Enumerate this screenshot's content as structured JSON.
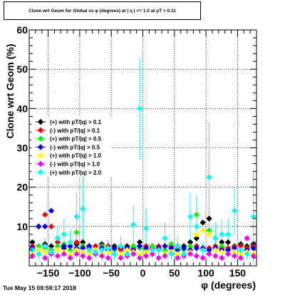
{
  "page": {
    "title": "Clone wrt Geom for Global vs φ (degrees) at | η | <= 1.0 at pT > 0.11",
    "timestamp": "Tue May 15 09:59:17 2018"
  },
  "chart_data": {
    "type": "scatter",
    "title": "Clone wrt Geom for Global vs φ (degrees) at | η | <= 1.0 at pT > 0.11",
    "xlabel": "φ (degrees)",
    "ylabel": "Clone wrt Geom (%)",
    "xlim": [
      -180,
      180
    ],
    "ylim": [
      0,
      60
    ],
    "xticks": [
      -150,
      -100,
      -50,
      0,
      50,
      100,
      150
    ],
    "xtick_labels": [
      "−150",
      "−100",
      "−50",
      "0",
      "50",
      "100",
      "150"
    ],
    "yticks": [
      10,
      20,
      30,
      40,
      50,
      60
    ],
    "grid": true,
    "legend_position": "left",
    "series": [
      {
        "name": "(+) with pT/|q| > 0.1",
        "color": "#000000",
        "x": [
          -175,
          -165,
          -155,
          -145,
          -135,
          -125,
          -115,
          -105,
          -95,
          -85,
          -75,
          -65,
          -55,
          -45,
          -35,
          -25,
          -15,
          -5,
          5,
          15,
          25,
          35,
          45,
          55,
          65,
          75,
          85,
          95,
          105,
          115,
          125,
          135,
          145,
          155,
          165,
          175
        ],
        "y": [
          6,
          5,
          5.5,
          5,
          6,
          4.5,
          5,
          5.5,
          6,
          5,
          5,
          5.5,
          5,
          5,
          4.5,
          5,
          5,
          6,
          5,
          5,
          4.5,
          5,
          5.5,
          5,
          5,
          6,
          7,
          11,
          12,
          7,
          6,
          6,
          5,
          5.5,
          5,
          5.5
        ]
      },
      {
        "name": "(-) with pT/|q| > 0.1",
        "color": "#ff0000",
        "x": [
          -175,
          -165,
          -155,
          -145,
          -135,
          -125,
          -115,
          -105,
          -95,
          -85,
          -75,
          -65,
          -55,
          -45,
          -35,
          -25,
          -15,
          -5,
          5,
          15,
          25,
          35,
          45,
          55,
          65,
          75,
          85,
          95,
          105,
          115,
          125,
          135,
          145,
          155,
          165,
          175
        ],
        "y": [
          5,
          10,
          13,
          10,
          6,
          5,
          5,
          6,
          5,
          4.5,
          5,
          5,
          5,
          4.5,
          4,
          4.5,
          4.5,
          5,
          5,
          4.5,
          5,
          5,
          5,
          4.5,
          4.5,
          5,
          5,
          4.5,
          4.5,
          5,
          4.5,
          4.5,
          5,
          5,
          4.5,
          5
        ]
      },
      {
        "name": "(+) with pT/|q| > 0.5",
        "color": "#00ff00",
        "x": [
          -175,
          -165,
          -155,
          -145,
          -135,
          -125,
          -115,
          -105,
          -95,
          -85,
          -75,
          -65,
          -55,
          -45,
          -35,
          -25,
          -15,
          -5,
          5,
          15,
          25,
          35,
          45,
          55,
          65,
          75,
          85,
          95,
          105,
          115,
          125,
          135,
          145,
          155,
          165,
          175
        ],
        "y": [
          4,
          5,
          4.5,
          4,
          5,
          5.5,
          4,
          8.5,
          5,
          4,
          4,
          5,
          4.5,
          4,
          5,
          4,
          5,
          4.5,
          4,
          5,
          4,
          4,
          5.5,
          4.5,
          4,
          5,
          13,
          9,
          9,
          4,
          5,
          4,
          4.5,
          4,
          4,
          4.5
        ]
      },
      {
        "name": "(-) with pT/|q| > 0.5",
        "color": "#0000ff",
        "x": [
          -175,
          -165,
          -155,
          -145,
          -135,
          -125,
          -115,
          -105,
          -95,
          -85,
          -75,
          -65,
          -55,
          -45,
          -35,
          -25,
          -15,
          -5,
          5,
          15,
          25,
          35,
          45,
          55,
          65,
          75,
          85,
          95,
          105,
          115,
          125,
          135,
          145,
          155,
          165,
          175
        ],
        "y": [
          4.5,
          10,
          10,
          14,
          7,
          5,
          5,
          4.5,
          4.5,
          5,
          4,
          4.5,
          4,
          4.5,
          5,
          4.5,
          4,
          5,
          4.5,
          4,
          4.5,
          5,
          4.5,
          4,
          4.5,
          4,
          4.5,
          4.5,
          4,
          4.5,
          4,
          4,
          4.5,
          4,
          4,
          4.5
        ]
      },
      {
        "name": "(+) with pT/|q| > 1.0",
        "color": "#ffff00",
        "x": [
          -175,
          -165,
          -155,
          -145,
          -135,
          -125,
          -115,
          -105,
          -95,
          -85,
          -75,
          -65,
          -55,
          -45,
          -35,
          -25,
          -15,
          -5,
          5,
          15,
          25,
          35,
          45,
          55,
          65,
          75,
          85,
          95,
          105,
          115,
          125,
          135,
          145,
          155,
          165,
          175
        ],
        "y": [
          3,
          4,
          3.5,
          3,
          4,
          3.5,
          3,
          4,
          3.5,
          3,
          4,
          3,
          3.5,
          3,
          3,
          4,
          3.5,
          3,
          3.5,
          3,
          4,
          3,
          3.5,
          3,
          3,
          3.5,
          8,
          9,
          8,
          4,
          3.5,
          3,
          3.5,
          3,
          3.5,
          3
        ]
      },
      {
        "name": "(-) with pT/|q| > 1.0",
        "color": "#ff00ff",
        "x": [
          -175,
          -165,
          -155,
          -145,
          -135,
          -125,
          -115,
          -105,
          -95,
          -85,
          -75,
          -65,
          -55,
          -45,
          -35,
          -25,
          -15,
          -5,
          5,
          15,
          25,
          35,
          45,
          55,
          65,
          75,
          85,
          95,
          105,
          115,
          125,
          135,
          145,
          155,
          165,
          175
        ],
        "y": [
          2.5,
          3,
          2,
          3,
          2.5,
          3,
          2,
          3,
          2.5,
          2,
          3,
          2.5,
          2,
          3,
          2,
          2.5,
          3,
          2,
          2.5,
          3,
          2,
          2.5,
          3,
          2,
          2.5,
          3,
          2.5,
          2,
          3,
          2.5,
          2,
          3,
          2.5,
          2,
          7,
          2.5
        ]
      },
      {
        "name": "(+) with pT/|q| > 2.0",
        "color": "#00ffff",
        "x": [
          -175,
          -165,
          -155,
          -145,
          -135,
          -125,
          -115,
          -105,
          -95,
          -85,
          -75,
          -65,
          -55,
          -45,
          -35,
          -25,
          -15,
          -5,
          5,
          15,
          25,
          35,
          45,
          55,
          65,
          75,
          85,
          95,
          105,
          115,
          125,
          135,
          145,
          155,
          165,
          175
        ],
        "y": [
          4,
          3,
          5,
          3.5,
          7,
          8,
          6,
          12.5,
          14.5,
          4,
          3.5,
          4,
          4.5,
          3,
          5,
          3,
          10.5,
          40,
          9.5,
          4,
          4,
          7,
          3,
          5,
          3,
          12.5,
          10,
          4,
          22.5,
          7,
          8,
          8,
          14,
          4,
          3,
          12.5
        ],
        "err": [
          2,
          1.5,
          2,
          1.5,
          3,
          4,
          3,
          6,
          12,
          2,
          1.5,
          2,
          2,
          1.5,
          2.5,
          1.5,
          5,
          13,
          5,
          2,
          2,
          4,
          1.5,
          2.5,
          1.5,
          6,
          8,
          2,
          14,
          4,
          4,
          4,
          6,
          2,
          1.5,
          12
        ]
      }
    ]
  }
}
